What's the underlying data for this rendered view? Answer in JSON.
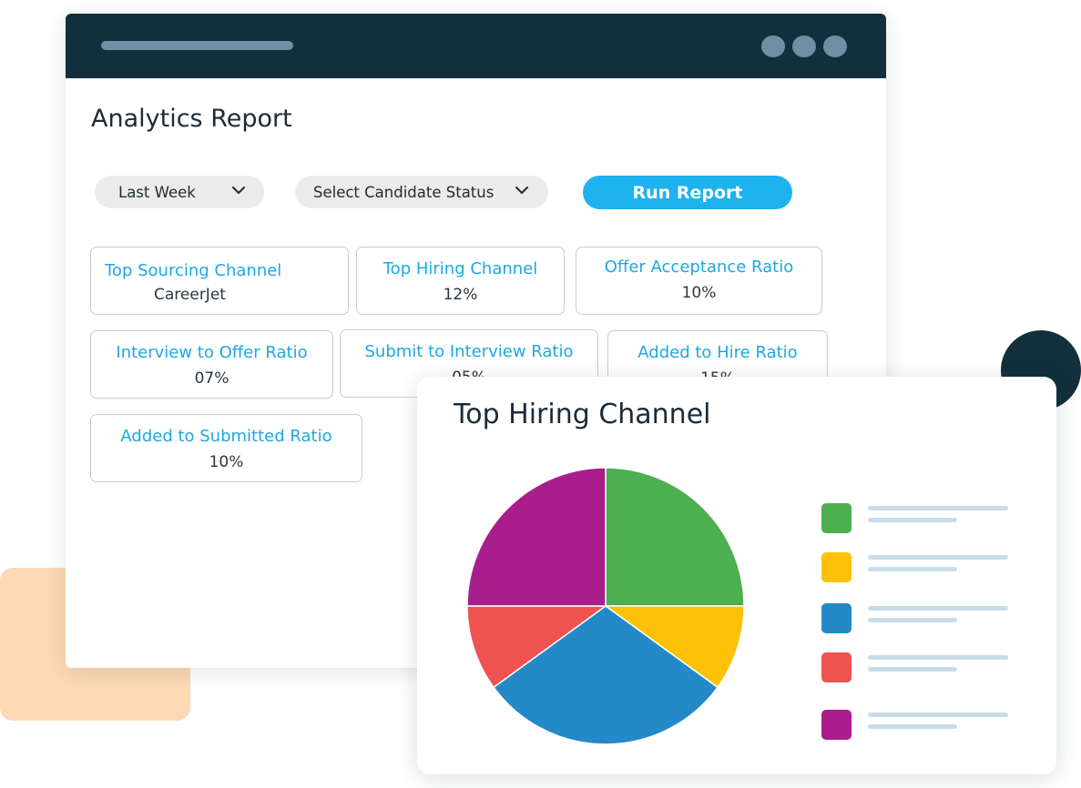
{
  "report": {
    "title": "Analytics Report",
    "period_dropdown": {
      "selected": "Last Week",
      "icon": "chevron-down-icon"
    },
    "status_dropdown": {
      "selected": "Select Candidate Status",
      "icon": "chevron-down-icon"
    },
    "run_button": "Run Report",
    "metrics": [
      {
        "label": "Top Sourcing Channel",
        "value": "CareerJet"
      },
      {
        "label": "Top Hiring Channel",
        "value": "12%"
      },
      {
        "label": "Offer Acceptance Ratio",
        "value": "10%"
      },
      {
        "label": "Interview to Offer Ratio",
        "value": "07%"
      },
      {
        "label": "Submit to Interview Ratio",
        "value": "05%"
      },
      {
        "label": "Added to Hire Ratio",
        "value": "15%"
      },
      {
        "label": "Added to Submitted Ratio",
        "value": "10%"
      }
    ]
  },
  "chart_panel": {
    "title": "Top Hiring Channel"
  },
  "chart_data": {
    "type": "pie",
    "title": "Top Hiring Channel",
    "slices": [
      {
        "value": 25,
        "color": "#4CAF50"
      },
      {
        "value": 10,
        "color": "#FFC107"
      },
      {
        "value": 30,
        "color": "#2389C7"
      },
      {
        "value": 10,
        "color": "#EF5350"
      },
      {
        "value": 25,
        "color": "#A91D8C"
      }
    ],
    "legend_placement": "right"
  },
  "colors": {
    "titlebar": "#142F3C",
    "accent": "#1EB2EE",
    "metric_label": "#1EA8E0"
  }
}
